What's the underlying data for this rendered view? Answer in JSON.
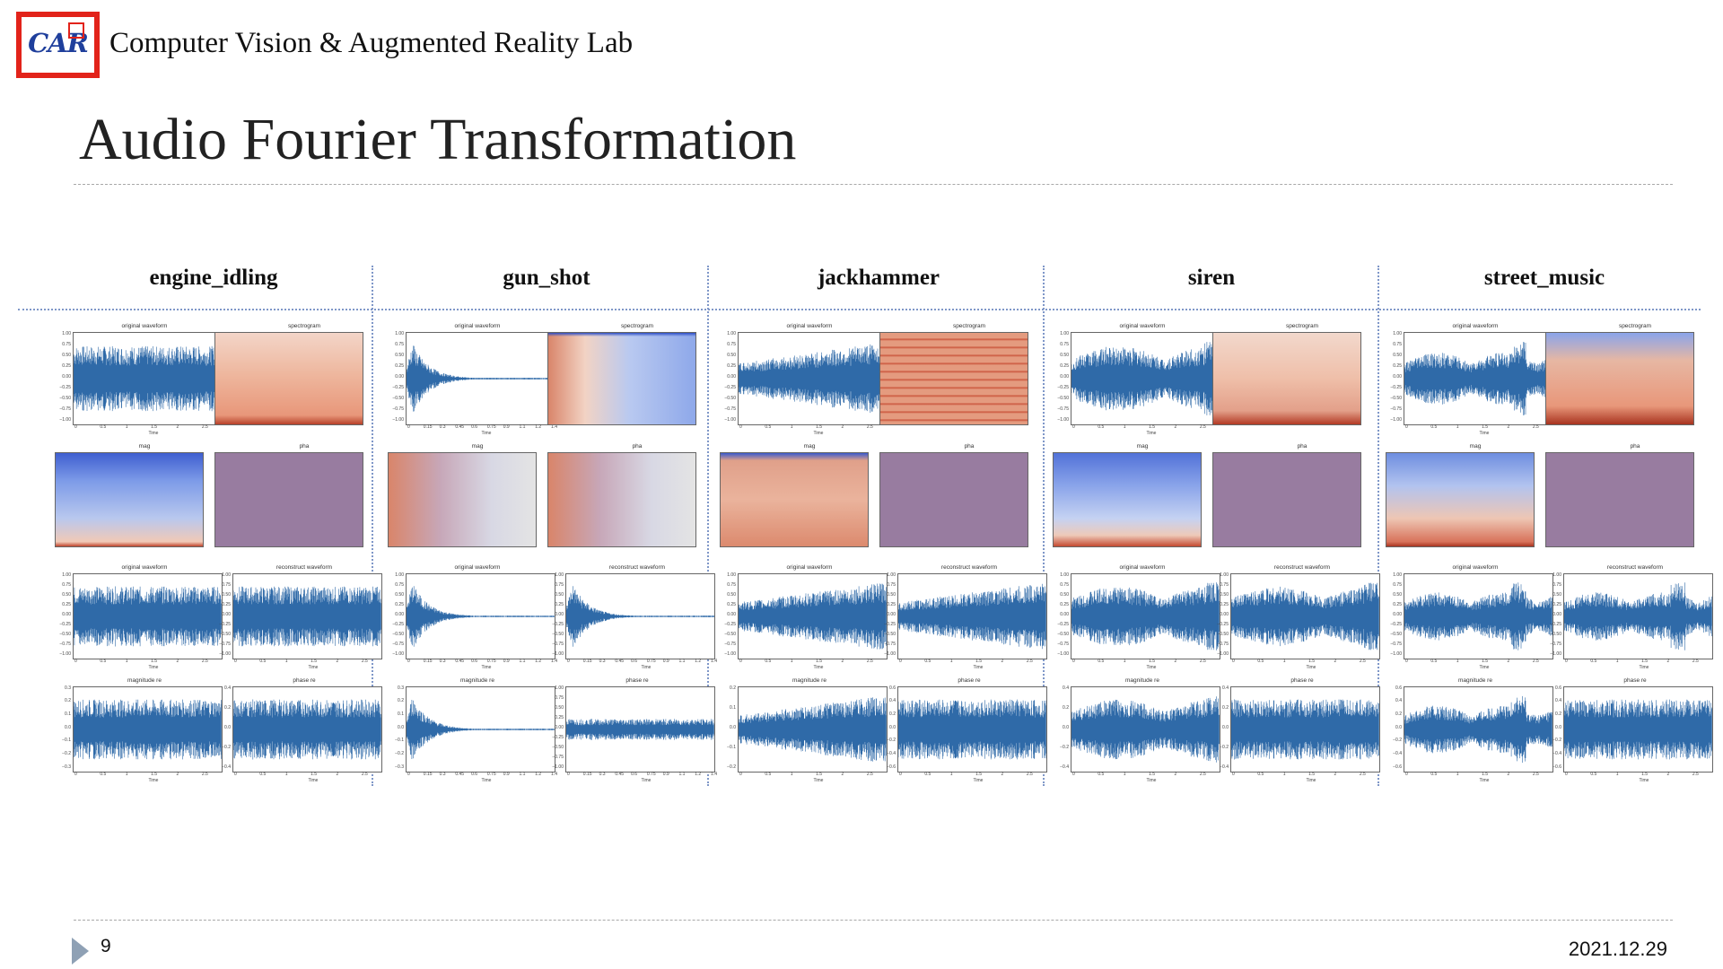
{
  "header": {
    "logo_text": "CAR",
    "lab_name": "Computer Vision & Augmented Reality Lab"
  },
  "slide": {
    "title": "Audio Fourier Transformation",
    "page_number": "9",
    "date": "2021.12.29"
  },
  "colors": {
    "waveform": "#2f6aa8",
    "spec_warm": "#e8977a",
    "spec_cool": "#6d8fe0",
    "phase": "#8e6e9e",
    "separator": "#7f97c8",
    "logo_red": "#e2231a"
  },
  "axes": {
    "waveform_yticks": [
      "1.00",
      "0.75",
      "0.50",
      "0.25",
      "0.00",
      "−0.25",
      "−0.50",
      "−0.75",
      "−1.00"
    ],
    "time_xticks": [
      "0",
      "0.5",
      "1",
      "1.5",
      "2",
      "2.5"
    ],
    "gun_time_xticks": [
      "0",
      "0.15",
      "0.3",
      "0.45",
      "0.6",
      "0.75",
      "0.9",
      "1.1",
      "1.2",
      "1.4"
    ],
    "time_label": "Time"
  },
  "panel_titles": {
    "original_waveform": "original waveform",
    "spectrogram": "spectrogram",
    "mag": "mag",
    "pha": "pha",
    "reconstruct_waveform": "reconstruct waveform",
    "magnitude_re": "magnitude re",
    "phase_re": "phase re"
  },
  "classes": [
    {
      "name": "engine_idling",
      "mag_yticks": [
        "0.3",
        "0.2",
        "0.1",
        "0.0",
        "−0.1",
        "−0.2",
        "−0.3"
      ],
      "phase_yticks": [
        "0.4",
        "0.2",
        "0.0",
        "−0.2",
        "−0.4"
      ]
    },
    {
      "name": "gun_shot",
      "mag_yticks": [
        "0.3",
        "0.2",
        "0.1",
        "0.0",
        "−0.1",
        "−0.2",
        "−0.3"
      ],
      "phase_yticks": [
        "1.00",
        "0.75",
        "0.50",
        "0.25",
        "0.00",
        "−0.25",
        "−0.50",
        "−0.75",
        "−1.00"
      ]
    },
    {
      "name": "jackhammer",
      "mag_yticks": [
        "0.2",
        "0.1",
        "0.0",
        "−0.1",
        "−0.2"
      ],
      "phase_yticks": [
        "0.6",
        "0.4",
        "0.2",
        "0.0",
        "−0.2",
        "−0.4",
        "−0.6"
      ]
    },
    {
      "name": "siren",
      "mag_yticks": [
        "0.4",
        "0.2",
        "0.0",
        "−0.2",
        "−0.4"
      ],
      "phase_yticks": [
        "0.4",
        "0.2",
        "0.0",
        "−0.2",
        "−0.4"
      ]
    },
    {
      "name": "street_music",
      "mag_yticks": [
        "0.6",
        "0.4",
        "0.2",
        "0.0",
        "−0.2",
        "−0.4",
        "−0.6"
      ],
      "phase_yticks": [
        "0.6",
        "0.4",
        "0.2",
        "0.0",
        "−0.2",
        "−0.4",
        "−0.6"
      ]
    }
  ]
}
